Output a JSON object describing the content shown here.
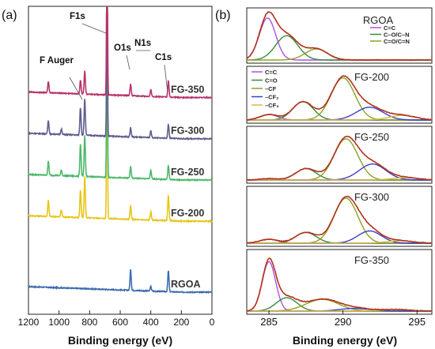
{
  "chart_data": [
    {
      "type": "line",
      "panel_label": "(a)",
      "xlabel": "Binding energy (eV)",
      "ylabel": "",
      "xlim": [
        1200,
        0
      ],
      "x_reversed": true,
      "x_ticks": [
        1200,
        1000,
        800,
        600,
        400,
        200,
        0
      ],
      "legend": "none",
      "grid": false,
      "series": [
        {
          "name": "RGOA",
          "color": "#3d6bb0",
          "baseline": 0.0,
          "peaks": [
            {
              "x": 285,
              "h": 0.45
            },
            {
              "x": 400,
              "h": 0.1
            },
            {
              "x": 532,
              "h": 0.45
            }
          ]
        },
        {
          "name": "FG-200",
          "color": "#e6c619",
          "baseline": 1.55,
          "peaks": [
            {
              "x": 285,
              "h": 0.55
            },
            {
              "x": 400,
              "h": 0.18
            },
            {
              "x": 532,
              "h": 0.3
            },
            {
              "x": 686,
              "h": 4.6
            },
            {
              "x": 832,
              "h": 0.9
            },
            {
              "x": 860,
              "h": 0.6
            },
            {
              "x": 985,
              "h": 0.15
            },
            {
              "x": 1070,
              "h": 0.35
            }
          ]
        },
        {
          "name": "FG-250",
          "color": "#4cb86a",
          "baseline": 2.45,
          "peaks": [
            {
              "x": 285,
              "h": 0.3
            },
            {
              "x": 400,
              "h": 0.18
            },
            {
              "x": 532,
              "h": 0.25
            },
            {
              "x": 686,
              "h": 3.8
            },
            {
              "x": 832,
              "h": 0.9
            },
            {
              "x": 860,
              "h": 0.7
            },
            {
              "x": 985,
              "h": 0.12
            },
            {
              "x": 1070,
              "h": 0.3
            }
          ]
        },
        {
          "name": "FG-300",
          "color": "#5c5d8e",
          "baseline": 3.35,
          "peaks": [
            {
              "x": 285,
              "h": 0.3
            },
            {
              "x": 400,
              "h": 0.15
            },
            {
              "x": 532,
              "h": 0.2
            },
            {
              "x": 686,
              "h": 3.5
            },
            {
              "x": 832,
              "h": 0.8
            },
            {
              "x": 860,
              "h": 0.6
            },
            {
              "x": 985,
              "h": 0.12
            },
            {
              "x": 1070,
              "h": 0.3
            }
          ]
        },
        {
          "name": "FG-350",
          "color": "#b8336a",
          "baseline": 4.25,
          "peaks": [
            {
              "x": 285,
              "h": 0.35
            },
            {
              "x": 400,
              "h": 0.15
            },
            {
              "x": 532,
              "h": 0.25
            },
            {
              "x": 686,
              "h": 4.2
            },
            {
              "x": 832,
              "h": 0.5
            },
            {
              "x": 860,
              "h": 0.3
            },
            {
              "x": 1070,
              "h": 0.25
            }
          ]
        }
      ],
      "annotations": [
        {
          "text": "F1s",
          "x": 686
        },
        {
          "text": "O1s",
          "x": 532
        },
        {
          "text": "N1s",
          "x": 400
        },
        {
          "text": "C1s",
          "x": 285
        },
        {
          "text": "F Auger",
          "x": 832
        }
      ]
    },
    {
      "type": "line",
      "panel_label": "(b)",
      "xlabel": "Binding energy (eV)",
      "xlim": [
        283.5,
        296
      ],
      "x_ticks": [
        285,
        290,
        295
      ],
      "legend": "top-right",
      "grid": false,
      "envelope_color": "#b0321e",
      "panels": [
        {
          "label": "RGOA",
          "legend_entries": [
            "C=C",
            "C–O/C–N",
            "C=O/C=N"
          ],
          "components": [
            {
              "name": "C=C",
              "color": "#b24fe6",
              "center": 284.9,
              "height": 0.95,
              "width": 0.55
            },
            {
              "name": "C–O/C–N",
              "color": "#3a8a3a",
              "center": 286.2,
              "height": 0.55,
              "width": 0.75
            },
            {
              "name": "C=O/C=N",
              "color": "#8aa322",
              "center": 288.2,
              "height": 0.25,
              "width": 0.75
            }
          ]
        },
        {
          "label": "FG-200",
          "legend_entries": [
            "C=C",
            "C=O",
            "-CF",
            "-CF2",
            "-CF3"
          ],
          "components": [
            {
              "name": "C=C",
              "color": "#b24fe6",
              "center": 285.0,
              "height": 0.12,
              "width": 0.6
            },
            {
              "name": "C=O",
              "color": "#3a8a3a",
              "center": 287.3,
              "height": 0.4,
              "width": 0.7
            },
            {
              "name": "-CF",
              "color": "#8aa322",
              "center": 290.0,
              "height": 0.92,
              "width": 0.8
            },
            {
              "name": "-CF2",
              "color": "#3d3dc9",
              "center": 291.8,
              "height": 0.28,
              "width": 0.9
            },
            {
              "name": "-CF3",
              "color": "#d9b84a",
              "center": 294.0,
              "height": 0.1,
              "width": 0.9
            }
          ]
        },
        {
          "label": "FG-250",
          "components": [
            {
              "name": "C=C",
              "color": "#b24fe6",
              "center": 285.0,
              "height": 0.03,
              "width": 0.6
            },
            {
              "name": "C=O",
              "color": "#3a8a3a",
              "center": 287.5,
              "height": 0.25,
              "width": 0.7
            },
            {
              "name": "-CF",
              "color": "#8aa322",
              "center": 290.2,
              "height": 0.9,
              "width": 0.8
            },
            {
              "name": "-CF2",
              "color": "#3d3dc9",
              "center": 292.0,
              "height": 0.35,
              "width": 0.9
            },
            {
              "name": "-CF3",
              "color": "#d9b84a",
              "center": 294.2,
              "height": 0.05,
              "width": 0.9
            }
          ]
        },
        {
          "label": "FG-300",
          "components": [
            {
              "name": "C=C",
              "color": "#b24fe6",
              "center": 285.0,
              "height": 0.08,
              "width": 0.6
            },
            {
              "name": "C=O",
              "color": "#3a8a3a",
              "center": 287.5,
              "height": 0.22,
              "width": 0.7
            },
            {
              "name": "-CF",
              "color": "#8aa322",
              "center": 290.2,
              "height": 0.92,
              "width": 0.8
            },
            {
              "name": "-CF2",
              "color": "#3d3dc9",
              "center": 291.8,
              "height": 0.25,
              "width": 0.8
            },
            {
              "name": "-CF3",
              "color": "#d9b84a",
              "center": 293.8,
              "height": 0.05,
              "width": 0.9
            }
          ]
        },
        {
          "label": "FG-350",
          "components": [
            {
              "name": "C=C",
              "color": "#b24fe6",
              "center": 285.0,
              "height": 0.92,
              "width": 0.45
            },
            {
              "name": "C=O",
              "color": "#3a8a3a",
              "center": 286.2,
              "height": 0.25,
              "width": 0.7
            },
            {
              "name": "-CF",
              "color": "#8aa322",
              "center": 288.6,
              "height": 0.22,
              "width": 1.1
            },
            {
              "name": "-CF2",
              "color": "#3d3dc9",
              "center": 290.8,
              "height": 0.05,
              "width": 1.0
            },
            {
              "name": "-CF3",
              "color": "#d9b84a",
              "center": 293.5,
              "height": 0.03,
              "width": 1.0
            }
          ]
        }
      ]
    }
  ]
}
